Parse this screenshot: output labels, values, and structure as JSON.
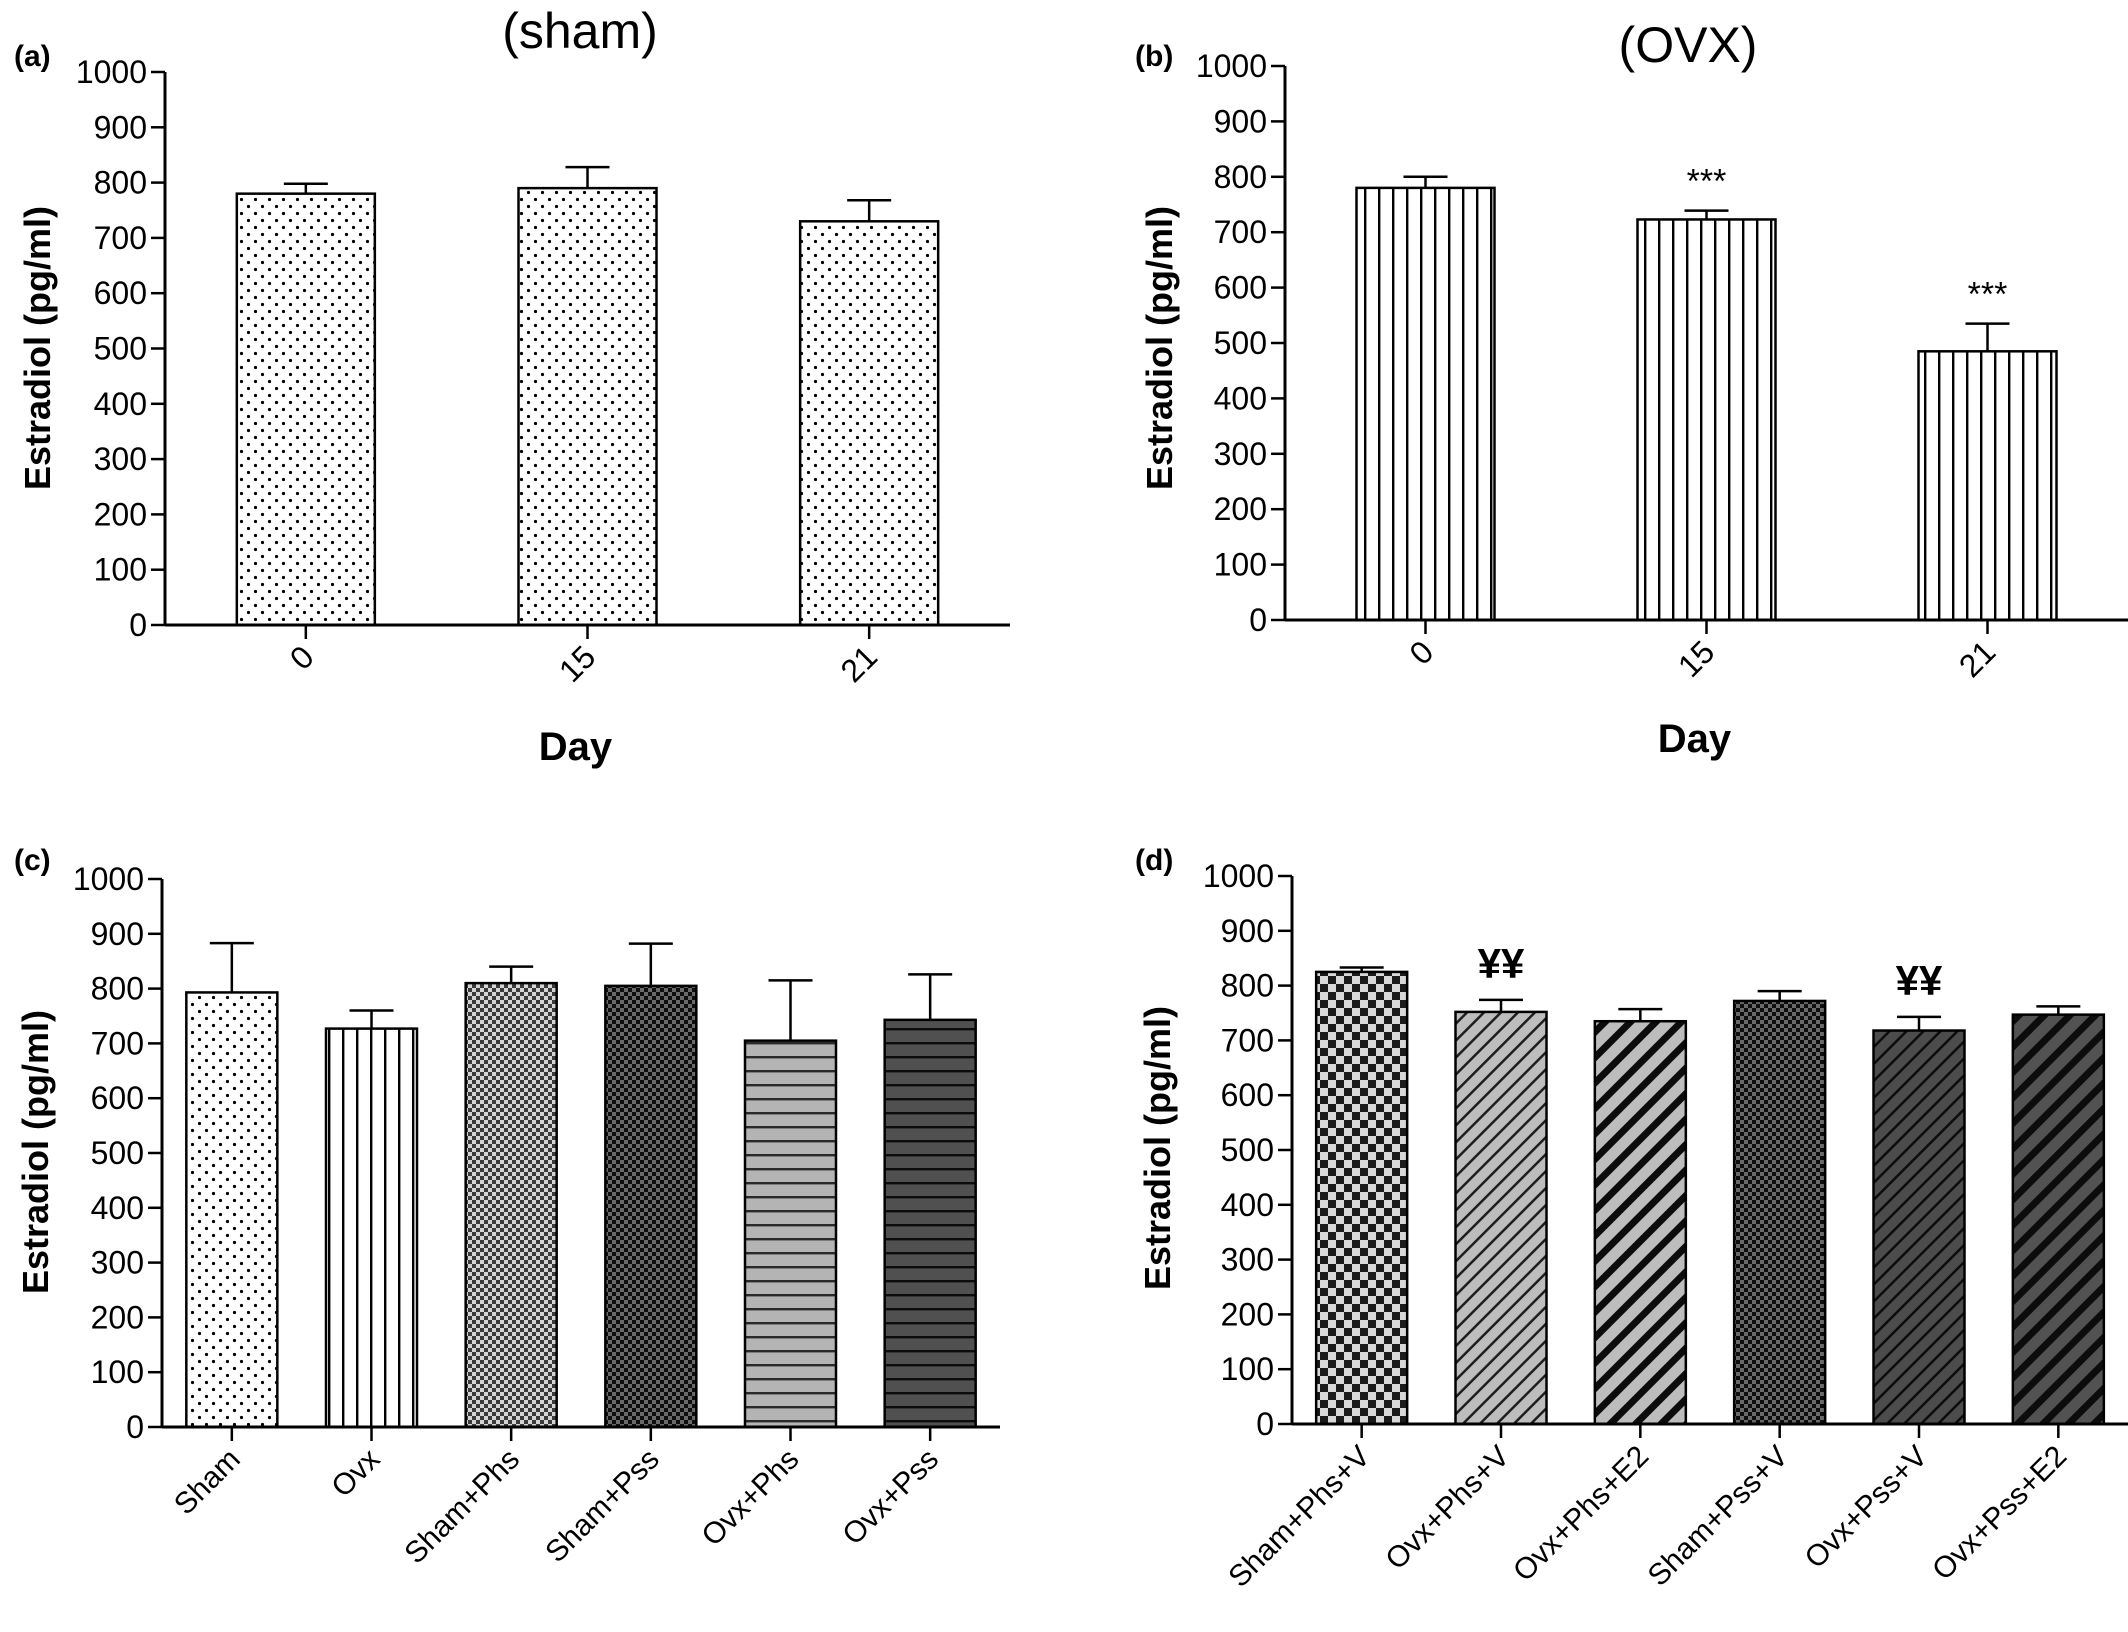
{
  "chart_data": [
    {
      "type": "bar",
      "panel": "(a)",
      "title": "(sham)",
      "xlabel": "Day",
      "ylabel": "Estradiol (pg/ml)",
      "ylim": [
        0,
        1000
      ],
      "yticks": [
        0,
        100,
        200,
        300,
        400,
        500,
        600,
        700,
        800,
        900,
        1000
      ],
      "categories": [
        "0",
        "15",
        "21"
      ],
      "values": [
        780,
        790,
        730
      ],
      "errors": [
        18,
        38,
        38
      ],
      "annotations": [
        "",
        "",
        ""
      ],
      "patterns": [
        "dots",
        "dots",
        "dots"
      ]
    },
    {
      "type": "bar",
      "panel": "(b)",
      "title": "(OVX)",
      "xlabel": "Day",
      "ylabel": "Estradiol (pg/ml)",
      "ylim": [
        0,
        1000
      ],
      "yticks": [
        0,
        100,
        200,
        300,
        400,
        500,
        600,
        700,
        800,
        900,
        1000
      ],
      "categories": [
        "0",
        "15",
        "21"
      ],
      "values": [
        780,
        723,
        485
      ],
      "errors": [
        20,
        16,
        50
      ],
      "annotations": [
        "",
        "***",
        "***"
      ],
      "patterns": [
        "vlines",
        "vlines",
        "vlines"
      ]
    },
    {
      "type": "bar",
      "panel": "(c)",
      "title": "",
      "xlabel": "",
      "ylabel": "Estradiol (pg/ml)",
      "ylim": [
        0,
        1000
      ],
      "yticks": [
        0,
        100,
        200,
        300,
        400,
        500,
        600,
        700,
        800,
        900,
        1000
      ],
      "categories": [
        "Sham",
        "Ovx",
        "Sham+Phs",
        "Sham+Pss",
        "Ovx+Phs",
        "Ovx+Pss"
      ],
      "values": [
        793,
        727,
        810,
        805,
        705,
        743
      ],
      "errors": [
        90,
        33,
        30,
        77,
        110,
        83
      ],
      "annotations": [
        "",
        "",
        "",
        "",
        "",
        ""
      ],
      "patterns": [
        "dots",
        "vlines",
        "checker-fine",
        "checker-dark",
        "hlines-light",
        "hlines-dark"
      ]
    },
    {
      "type": "bar",
      "panel": "(d)",
      "title": "",
      "xlabel": "",
      "ylabel": "Estradiol (pg/ml)",
      "ylim": [
        0,
        1000
      ],
      "yticks": [
        0,
        100,
        200,
        300,
        400,
        500,
        600,
        700,
        800,
        900,
        1000
      ],
      "categories": [
        "Sham+Phs+V",
        "Ovx+Phs+V",
        "Ovx+Phs+E2",
        "Sham+Pss+V",
        "Ovx+Pss+V",
        "Ovx+Pss+E2"
      ],
      "values": [
        825,
        752,
        735,
        772,
        718,
        747
      ],
      "errors": [
        8,
        22,
        22,
        18,
        25,
        15
      ],
      "annotations": [
        "",
        "¥¥",
        "",
        "",
        "¥¥",
        ""
      ],
      "patterns": [
        "checker-big",
        "diag-thin",
        "diag-thick",
        "checker-dark",
        "diag-dark-thin",
        "diag-dark-thick"
      ]
    }
  ]
}
